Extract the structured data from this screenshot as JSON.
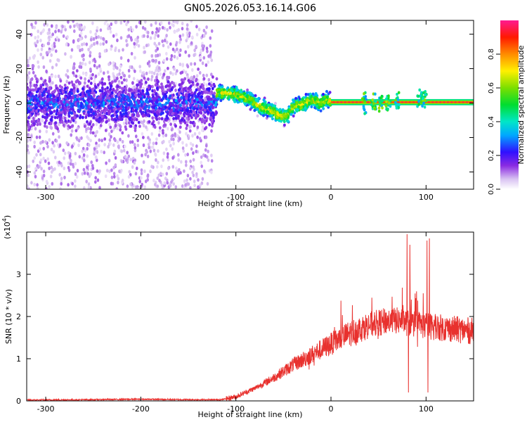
{
  "title": "GN05.2026.053.16.14.G06",
  "chart_data": [
    {
      "type": "heatmap",
      "panel": "top",
      "xlabel": "Height of straight line (km)",
      "ylabel": "Frequency (Hz)",
      "xlim": [
        -320,
        150
      ],
      "ylim": [
        -50,
        48
      ],
      "xticks": [
        -300,
        -200,
        -100,
        0,
        100
      ],
      "yticks": [
        -40,
        -20,
        0,
        20,
        40
      ],
      "colorbar": {
        "label": "Normalized spectral amplitude",
        "range": [
          0.0,
          1.0
        ],
        "ticks": [
          0.0,
          0.2,
          0.4,
          0.6,
          0.8
        ]
      },
      "regions": [
        {
          "name": "noise scatter",
          "x": [
            -320,
            -125
          ],
          "amplitude": 0.1
        },
        {
          "name": "noisy band",
          "x": [
            -320,
            -120
          ],
          "freq_center": 0,
          "freq_spread": 12,
          "amplitude": 0.25
        },
        {
          "name": "signal trace",
          "x": [
            -120,
            0
          ],
          "freq_center": [
            6,
            3,
            -3,
            -8,
            -7,
            -2,
            2,
            1
          ],
          "amplitude": 0.55
        },
        {
          "name": "steady tone",
          "x": [
            0,
            150
          ],
          "freq_center": 0.5,
          "amplitude": 0.85
        }
      ],
      "trace_path": [
        [
          -118,
          6
        ],
        [
          -100,
          5
        ],
        [
          -85,
          2
        ],
        [
          -75,
          -2
        ],
        [
          -65,
          -4
        ],
        [
          -55,
          -7
        ],
        [
          -47,
          -8
        ],
        [
          -40,
          -2
        ],
        [
          -30,
          -1
        ],
        [
          -22,
          2
        ],
        [
          -12,
          0
        ],
        [
          -5,
          2
        ],
        [
          0,
          1
        ],
        [
          150,
          1
        ]
      ],
      "bursts": [
        [
          35,
          0.5
        ],
        [
          45,
          0.5
        ],
        [
          52,
          0.5
        ],
        [
          60,
          0.5
        ],
        [
          70,
          0.5
        ],
        [
          95,
          1
        ],
        [
          98,
          3
        ]
      ]
    },
    {
      "type": "line",
      "panel": "bottom",
      "xlabel": "Height of straight line (km)",
      "ylabel": "SNR (10 * v/v)",
      "scale_label": "(x10",
      "scale_exp": "4",
      "xlim": [
        -320,
        150
      ],
      "ylim": [
        0,
        4
      ],
      "xticks": [
        -300,
        -200,
        -100,
        0,
        100
      ],
      "yticks": [
        0,
        1,
        2,
        3
      ],
      "color": "#e8312e",
      "envelope": [
        [
          -320,
          0.02
        ],
        [
          -250,
          0.03
        ],
        [
          -200,
          0.04
        ],
        [
          -150,
          0.03
        ],
        [
          -115,
          0.03
        ],
        [
          -100,
          0.1
        ],
        [
          -80,
          0.3
        ],
        [
          -60,
          0.55
        ],
        [
          -40,
          0.85
        ],
        [
          -20,
          1.1
        ],
        [
          0,
          1.35
        ],
        [
          20,
          1.6
        ],
        [
          40,
          1.8
        ],
        [
          60,
          1.9
        ],
        [
          75,
          1.9
        ],
        [
          80,
          1.85
        ],
        [
          95,
          1.8
        ],
        [
          110,
          1.75
        ],
        [
          130,
          1.7
        ],
        [
          150,
          1.65
        ]
      ],
      "spikes": [
        [
          80,
          3.95
        ],
        [
          81.5,
          0.2
        ],
        [
          83,
          3.7
        ],
        [
          84.5,
          2.4
        ],
        [
          101,
          3.8
        ],
        [
          102,
          0.2
        ],
        [
          103.5,
          3.85
        ]
      ],
      "noise_amplitude": 0.2
    }
  ]
}
